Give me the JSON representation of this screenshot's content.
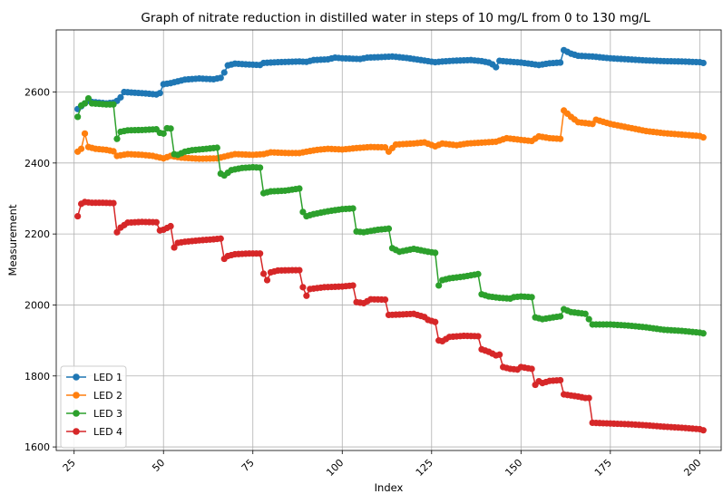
{
  "chart_data": {
    "type": "line",
    "title": "Graph of nitrate reduction in distilled water in steps of 10 mg/L from 0 to 130 mg/L",
    "xlabel": "Index",
    "ylabel": "Measurement",
    "xlim": [
      20,
      206
    ],
    "ylim": [
      1590,
      2775
    ],
    "xticks": [
      25,
      50,
      75,
      100,
      125,
      150,
      175,
      200
    ],
    "yticks": [
      1600,
      1800,
      2000,
      2200,
      2400,
      2600
    ],
    "grid": true,
    "legend_position": "lower-left",
    "markers": "circle",
    "series": [
      {
        "name": "LED 1",
        "color": "#1f77b4",
        "points": [
          [
            26,
            2552
          ],
          [
            27,
            2560
          ],
          [
            28,
            2568
          ],
          [
            29,
            2575
          ],
          [
            30,
            2572
          ],
          [
            32,
            2570
          ],
          [
            34,
            2568
          ],
          [
            36,
            2570
          ],
          [
            37,
            2575
          ],
          [
            38,
            2585
          ],
          [
            39,
            2600
          ],
          [
            42,
            2598
          ],
          [
            45,
            2596
          ],
          [
            48,
            2593
          ],
          [
            49,
            2597
          ],
          [
            50,
            2622
          ],
          [
            52,
            2625
          ],
          [
            54,
            2630
          ],
          [
            56,
            2635
          ],
          [
            60,
            2638
          ],
          [
            64,
            2636
          ],
          [
            66,
            2640
          ],
          [
            67,
            2655
          ],
          [
            68,
            2675
          ],
          [
            70,
            2680
          ],
          [
            73,
            2678
          ],
          [
            77,
            2676
          ],
          [
            78,
            2682
          ],
          [
            82,
            2684
          ],
          [
            88,
            2686
          ],
          [
            90,
            2685
          ],
          [
            92,
            2690
          ],
          [
            96,
            2692
          ],
          [
            98,
            2697
          ],
          [
            100,
            2695
          ],
          [
            105,
            2693
          ],
          [
            107,
            2697
          ],
          [
            110,
            2698
          ],
          [
            114,
            2700
          ],
          [
            118,
            2696
          ],
          [
            122,
            2690
          ],
          [
            126,
            2684
          ],
          [
            128,
            2686
          ],
          [
            131,
            2688
          ],
          [
            136,
            2690
          ],
          [
            139,
            2687
          ],
          [
            141,
            2683
          ],
          [
            142,
            2678
          ],
          [
            143,
            2670
          ],
          [
            144,
            2688
          ],
          [
            146,
            2686
          ],
          [
            150,
            2683
          ],
          [
            153,
            2679
          ],
          [
            155,
            2676
          ],
          [
            158,
            2681
          ],
          [
            161,
            2683
          ],
          [
            162,
            2718
          ],
          [
            164,
            2708
          ],
          [
            166,
            2702
          ],
          [
            170,
            2700
          ],
          [
            175,
            2695
          ],
          [
            180,
            2692
          ],
          [
            185,
            2689
          ],
          [
            190,
            2687
          ],
          [
            195,
            2686
          ],
          [
            200,
            2684
          ],
          [
            201,
            2682
          ]
        ]
      },
      {
        "name": "LED 2",
        "color": "#ff7f0e",
        "points": [
          [
            26,
            2432
          ],
          [
            27,
            2440
          ],
          [
            28,
            2483
          ],
          [
            29,
            2445
          ],
          [
            31,
            2440
          ],
          [
            34,
            2437
          ],
          [
            36,
            2433
          ],
          [
            37,
            2420
          ],
          [
            40,
            2425
          ],
          [
            44,
            2423
          ],
          [
            47,
            2420
          ],
          [
            50,
            2413
          ],
          [
            52,
            2420
          ],
          [
            55,
            2415
          ],
          [
            60,
            2412
          ],
          [
            65,
            2413
          ],
          [
            67,
            2418
          ],
          [
            70,
            2425
          ],
          [
            75,
            2423
          ],
          [
            78,
            2425
          ],
          [
            80,
            2430
          ],
          [
            85,
            2428
          ],
          [
            88,
            2428
          ],
          [
            90,
            2432
          ],
          [
            93,
            2437
          ],
          [
            96,
            2440
          ],
          [
            100,
            2438
          ],
          [
            104,
            2442
          ],
          [
            108,
            2445
          ],
          [
            112,
            2444
          ],
          [
            113,
            2432
          ],
          [
            115,
            2452
          ],
          [
            120,
            2455
          ],
          [
            123,
            2458
          ],
          [
            126,
            2447
          ],
          [
            128,
            2455
          ],
          [
            132,
            2450
          ],
          [
            135,
            2455
          ],
          [
            140,
            2458
          ],
          [
            143,
            2460
          ],
          [
            146,
            2470
          ],
          [
            150,
            2465
          ],
          [
            153,
            2462
          ],
          [
            155,
            2475
          ],
          [
            158,
            2470
          ],
          [
            161,
            2468
          ],
          [
            162,
            2548
          ],
          [
            164,
            2530
          ],
          [
            166,
            2515
          ],
          [
            170,
            2510
          ],
          [
            171,
            2522
          ],
          [
            175,
            2510
          ],
          [
            180,
            2500
          ],
          [
            185,
            2490
          ],
          [
            190,
            2484
          ],
          [
            195,
            2480
          ],
          [
            200,
            2476
          ],
          [
            201,
            2472
          ]
        ]
      },
      {
        "name": "LED 3",
        "color": "#2ca02c",
        "points": [
          [
            26,
            2530
          ],
          [
            27,
            2562
          ],
          [
            28,
            2568
          ],
          [
            29,
            2582
          ],
          [
            30,
            2568
          ],
          [
            34,
            2565
          ],
          [
            36,
            2565
          ],
          [
            37,
            2468
          ],
          [
            38,
            2488
          ],
          [
            40,
            2492
          ],
          [
            44,
            2493
          ],
          [
            48,
            2495
          ],
          [
            49,
            2485
          ],
          [
            50,
            2483
          ],
          [
            51,
            2498
          ],
          [
            52,
            2497
          ],
          [
            53,
            2425
          ],
          [
            54,
            2423
          ],
          [
            56,
            2432
          ],
          [
            58,
            2436
          ],
          [
            62,
            2440
          ],
          [
            65,
            2443
          ],
          [
            66,
            2370
          ],
          [
            67,
            2365
          ],
          [
            69,
            2380
          ],
          [
            72,
            2386
          ],
          [
            75,
            2388
          ],
          [
            77,
            2387
          ],
          [
            78,
            2315
          ],
          [
            80,
            2320
          ],
          [
            84,
            2322
          ],
          [
            88,
            2328
          ],
          [
            89,
            2262
          ],
          [
            90,
            2250
          ],
          [
            92,
            2256
          ],
          [
            96,
            2264
          ],
          [
            100,
            2270
          ],
          [
            103,
            2272
          ],
          [
            104,
            2207
          ],
          [
            106,
            2205
          ],
          [
            110,
            2212
          ],
          [
            113,
            2215
          ],
          [
            114,
            2160
          ],
          [
            116,
            2150
          ],
          [
            120,
            2158
          ],
          [
            124,
            2150
          ],
          [
            126,
            2147
          ],
          [
            127,
            2055
          ],
          [
            128,
            2070
          ],
          [
            130,
            2075
          ],
          [
            134,
            2080
          ],
          [
            138,
            2087
          ],
          [
            139,
            2030
          ],
          [
            141,
            2024
          ],
          [
            144,
            2020
          ],
          [
            147,
            2018
          ],
          [
            148,
            2022
          ],
          [
            150,
            2024
          ],
          [
            153,
            2022
          ],
          [
            154,
            1965
          ],
          [
            156,
            1960
          ],
          [
            159,
            1965
          ],
          [
            161,
            1968
          ],
          [
            162,
            1988
          ],
          [
            164,
            1980
          ],
          [
            168,
            1975
          ],
          [
            170,
            1945
          ],
          [
            175,
            1945
          ],
          [
            180,
            1942
          ],
          [
            185,
            1937
          ],
          [
            190,
            1930
          ],
          [
            195,
            1927
          ],
          [
            200,
            1922
          ],
          [
            201,
            1920
          ]
        ]
      },
      {
        "name": "LED 4",
        "color": "#d62728",
        "points": [
          [
            26,
            2250
          ],
          [
            27,
            2285
          ],
          [
            28,
            2290
          ],
          [
            30,
            2288
          ],
          [
            33,
            2288
          ],
          [
            36,
            2287
          ],
          [
            37,
            2205
          ],
          [
            38,
            2218
          ],
          [
            40,
            2232
          ],
          [
            44,
            2234
          ],
          [
            48,
            2233
          ],
          [
            49,
            2210
          ],
          [
            50,
            2212
          ],
          [
            52,
            2222
          ],
          [
            53,
            2162
          ],
          [
            54,
            2175
          ],
          [
            56,
            2178
          ],
          [
            60,
            2182
          ],
          [
            64,
            2185
          ],
          [
            66,
            2187
          ],
          [
            67,
            2130
          ],
          [
            68,
            2138
          ],
          [
            70,
            2143
          ],
          [
            74,
            2145
          ],
          [
            77,
            2145
          ],
          [
            78,
            2088
          ],
          [
            79,
            2070
          ],
          [
            80,
            2092
          ],
          [
            82,
            2097
          ],
          [
            86,
            2098
          ],
          [
            88,
            2098
          ],
          [
            89,
            2050
          ],
          [
            90,
            2026
          ],
          [
            91,
            2045
          ],
          [
            95,
            2050
          ],
          [
            100,
            2052
          ],
          [
            103,
            2055
          ],
          [
            104,
            2008
          ],
          [
            106,
            2005
          ],
          [
            108,
            2016
          ],
          [
            112,
            2015
          ],
          [
            113,
            1972
          ],
          [
            116,
            1973
          ],
          [
            120,
            1975
          ],
          [
            123,
            1966
          ],
          [
            124,
            1958
          ],
          [
            126,
            1952
          ],
          [
            127,
            1900
          ],
          [
            128,
            1898
          ],
          [
            130,
            1910
          ],
          [
            134,
            1913
          ],
          [
            138,
            1912
          ],
          [
            139,
            1875
          ],
          [
            141,
            1868
          ],
          [
            143,
            1858
          ],
          [
            144,
            1860
          ],
          [
            145,
            1825
          ],
          [
            147,
            1820
          ],
          [
            149,
            1818
          ],
          [
            150,
            1825
          ],
          [
            153,
            1820
          ],
          [
            154,
            1775
          ],
          [
            155,
            1785
          ],
          [
            156,
            1780
          ],
          [
            158,
            1786
          ],
          [
            161,
            1788
          ],
          [
            162,
            1748
          ],
          [
            164,
            1745
          ],
          [
            166,
            1742
          ],
          [
            168,
            1738
          ],
          [
            169,
            1738
          ],
          [
            170,
            1668
          ],
          [
            175,
            1666
          ],
          [
            180,
            1664
          ],
          [
            185,
            1661
          ],
          [
            190,
            1657
          ],
          [
            195,
            1654
          ],
          [
            200,
            1650
          ],
          [
            201,
            1647
          ]
        ]
      }
    ]
  }
}
